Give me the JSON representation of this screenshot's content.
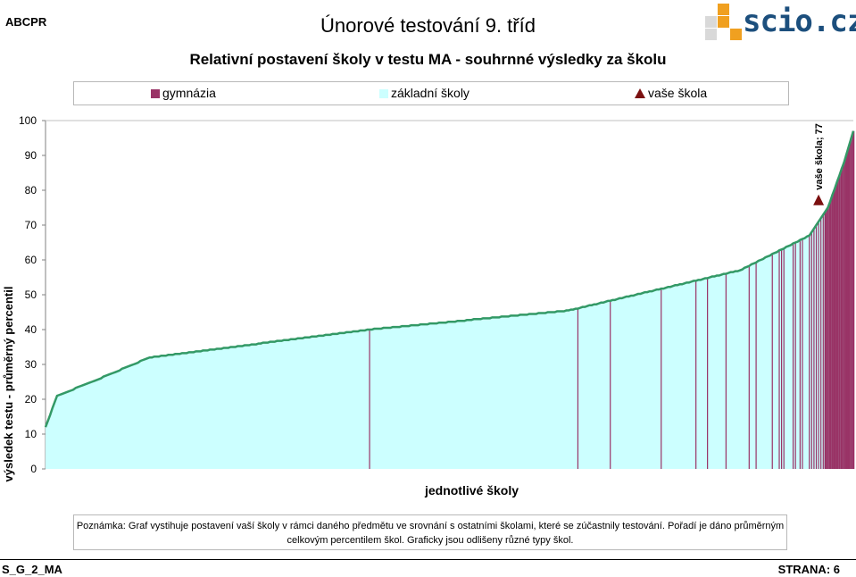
{
  "header": {
    "org": "ABCPR",
    "title": "Únorové testování 9. tříd",
    "subtitle": "Relativní postavení školy v testu MA - souhrnné výsledky za školu",
    "logo_text": "scio.cz"
  },
  "colors": {
    "gymnazia": "#993366",
    "zakladni": "#ccffff",
    "line": "#339966",
    "marker": "#7b1010",
    "logo_blue": "#1c4f7d",
    "logo_orange": "#f0a020"
  },
  "legend": {
    "gymnazia": "gymnázia",
    "zakladni": "základní školy",
    "vase": "vaše škola"
  },
  "chart_data": {
    "type": "area",
    "ylabel": "výsledek testu - průměrný percentil",
    "xlabel": "jednotlivé školy",
    "ylim": [
      0,
      100
    ],
    "yticks": [
      0,
      10,
      20,
      30,
      40,
      50,
      60,
      70,
      80,
      90,
      100
    ],
    "n_schools": 350,
    "profile_rank": [
      0,
      5,
      20,
      45,
      140,
      226,
      300,
      330,
      338,
      345,
      349
    ],
    "profile_value": [
      12,
      21,
      25,
      32,
      40,
      45.5,
      57,
      67,
      75,
      88,
      97
    ],
    "gymnazia_ranks": [
      140,
      230,
      244,
      266,
      281,
      286,
      294,
      304,
      307,
      314,
      317,
      318,
      319,
      323,
      324,
      326,
      327,
      330,
      331,
      332,
      333,
      334,
      335,
      336,
      337,
      338,
      339,
      340,
      341,
      342,
      343,
      344,
      345,
      346,
      347,
      348,
      349
    ],
    "vase_skola": {
      "rank": 334,
      "value": 77,
      "label": "vaše škola; 77"
    }
  },
  "note": {
    "line1": "Poznámka: Graf vystihuje postavení vaší školy v rámci daného předmětu ve srovnání s ostatními školami, které se zúčastnily testování. Pořadí je dáno průměrným",
    "line2": "celkovým percentilem škol. Graficky jsou odlišeny různé typy škol."
  },
  "footer": {
    "code": "S_G_2_MA",
    "page": "STRANA: 6"
  }
}
